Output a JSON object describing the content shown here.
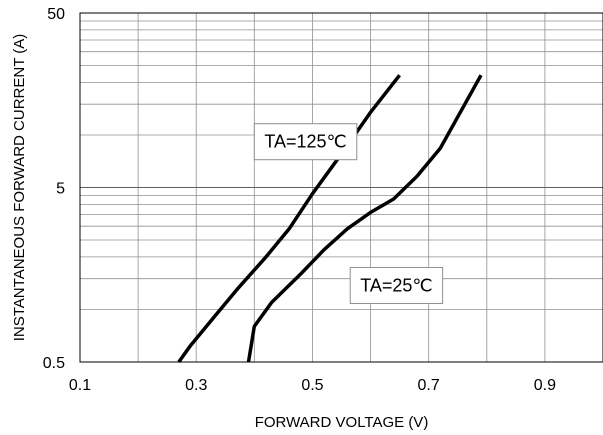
{
  "chart_data": {
    "type": "line",
    "xlabel": "FORWARD VOLTAGE (V)",
    "ylabel": "INSTANTANEOUS FORWARD CURRENT (A)",
    "xlim": [
      0.1,
      1.0
    ],
    "ylim": [
      0.5,
      50
    ],
    "yscale": "log",
    "grid": true,
    "x_ticks": [
      "0.1",
      "0.3",
      "0.5",
      "0.7",
      "0.9"
    ],
    "y_ticks": [
      "0.5",
      "5",
      "50"
    ],
    "series": [
      {
        "name": "TA=125℃",
        "x": [
          0.27,
          0.29,
          0.33,
          0.37,
          0.42,
          0.46,
          0.5,
          0.55,
          0.6,
          0.65
        ],
        "y": [
          0.5,
          0.62,
          0.9,
          1.3,
          2.0,
          2.9,
          4.6,
          7.8,
          13.5,
          22
        ]
      },
      {
        "name": "TA=25℃",
        "x": [
          0.39,
          0.4,
          0.43,
          0.48,
          0.52,
          0.56,
          0.6,
          0.64,
          0.68,
          0.72,
          0.79
        ],
        "y": [
          0.5,
          0.8,
          1.1,
          1.6,
          2.2,
          2.9,
          3.6,
          4.3,
          5.8,
          8.4,
          22
        ]
      }
    ],
    "annotations": [
      {
        "text": "TA=125℃",
        "x": 0.4,
        "y": 9.0
      },
      {
        "text": "TA=25℃",
        "x": 0.565,
        "y": 1.35
      }
    ]
  }
}
